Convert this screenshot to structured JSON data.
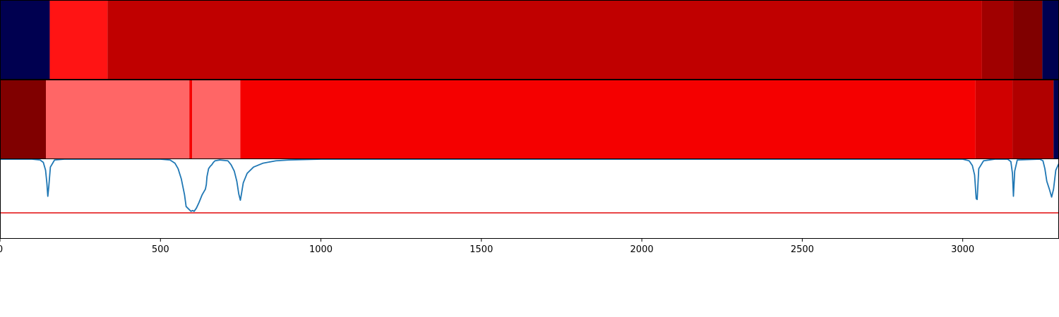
{
  "chart_data": {
    "type": "heatmap",
    "xlim": [
      0,
      3300
    ],
    "x_ticks": [
      "0",
      "500",
      "1000",
      "1500",
      "2000",
      "2500",
      "3000"
    ],
    "colors": {
      "line": "#1f77b4",
      "threshold": "#e31a1c",
      "navy": "#000050"
    },
    "strips": [
      {
        "segments": [
          {
            "x0": 0,
            "x1": 155,
            "color": "#000050"
          },
          {
            "x0": 155,
            "x1": 335,
            "color": "#ff1414"
          },
          {
            "x0": 335,
            "x1": 3060,
            "color": "#c00000"
          },
          {
            "x0": 3060,
            "x1": 3158,
            "color": "#a00000"
          },
          {
            "x0": 3158,
            "x1": 3248,
            "color": "#800000"
          },
          {
            "x0": 3248,
            "x1": 3300,
            "color": "#000050"
          }
        ]
      },
      {
        "segments": [
          {
            "x0": 0,
            "x1": 143,
            "color": "#800000"
          },
          {
            "x0": 143,
            "x1": 590,
            "color": "#ff6666"
          },
          {
            "x0": 590,
            "x1": 599,
            "color": "#f50000"
          },
          {
            "x0": 599,
            "x1": 749,
            "color": "#ff6666"
          },
          {
            "x0": 749,
            "x1": 3040,
            "color": "#f50000"
          },
          {
            "x0": 3040,
            "x1": 3155,
            "color": "#d00000"
          },
          {
            "x0": 3155,
            "x1": 3283,
            "color": "#b00000"
          },
          {
            "x0": 3283,
            "x1": 3300,
            "color": "#000050"
          }
        ]
      }
    ],
    "line_series": {
      "ylim": [
        0,
        1
      ],
      "threshold": 0.32,
      "points": [
        [
          0,
          1.0
        ],
        [
          100,
          1.0
        ],
        [
          125,
          0.99
        ],
        [
          135,
          0.96
        ],
        [
          142,
          0.86
        ],
        [
          146,
          0.7
        ],
        [
          149,
          0.53
        ],
        [
          152,
          0.65
        ],
        [
          157,
          0.9
        ],
        [
          170,
          0.99
        ],
        [
          200,
          1.0
        ],
        [
          500,
          1.0
        ],
        [
          530,
          0.99
        ],
        [
          545,
          0.95
        ],
        [
          555,
          0.88
        ],
        [
          565,
          0.75
        ],
        [
          575,
          0.55
        ],
        [
          580,
          0.4
        ],
        [
          585,
          0.38
        ],
        [
          590,
          0.36
        ],
        [
          595,
          0.34
        ],
        [
          600,
          0.35
        ],
        [
          605,
          0.34
        ],
        [
          612,
          0.38
        ],
        [
          620,
          0.45
        ],
        [
          630,
          0.55
        ],
        [
          640,
          0.62
        ],
        [
          643,
          0.68
        ],
        [
          645,
          0.78
        ],
        [
          650,
          0.88
        ],
        [
          655,
          0.91
        ],
        [
          660,
          0.93
        ],
        [
          665,
          0.96
        ],
        [
          670,
          0.98
        ],
        [
          685,
          0.99
        ],
        [
          710,
          0.98
        ],
        [
          720,
          0.93
        ],
        [
          730,
          0.85
        ],
        [
          738,
          0.72
        ],
        [
          744,
          0.56
        ],
        [
          749,
          0.48
        ],
        [
          752,
          0.55
        ],
        [
          758,
          0.7
        ],
        [
          770,
          0.82
        ],
        [
          790,
          0.9
        ],
        [
          820,
          0.95
        ],
        [
          860,
          0.98
        ],
        [
          900,
          0.99
        ],
        [
          1000,
          1.0
        ],
        [
          2900,
          1.0
        ],
        [
          3000,
          1.0
        ],
        [
          3020,
          0.98
        ],
        [
          3030,
          0.92
        ],
        [
          3037,
          0.8
        ],
        [
          3042,
          0.5
        ],
        [
          3045,
          0.49
        ],
        [
          3050,
          0.88
        ],
        [
          3065,
          0.98
        ],
        [
          3100,
          1.0
        ],
        [
          3140,
          1.0
        ],
        [
          3150,
          0.97
        ],
        [
          3155,
          0.82
        ],
        [
          3158,
          0.53
        ],
        [
          3162,
          0.85
        ],
        [
          3170,
          0.99
        ],
        [
          3240,
          1.0
        ],
        [
          3250,
          0.98
        ],
        [
          3256,
          0.88
        ],
        [
          3262,
          0.72
        ],
        [
          3270,
          0.62
        ],
        [
          3277,
          0.52
        ],
        [
          3283,
          0.62
        ],
        [
          3290,
          0.86
        ],
        [
          3300,
          0.95
        ]
      ]
    }
  }
}
